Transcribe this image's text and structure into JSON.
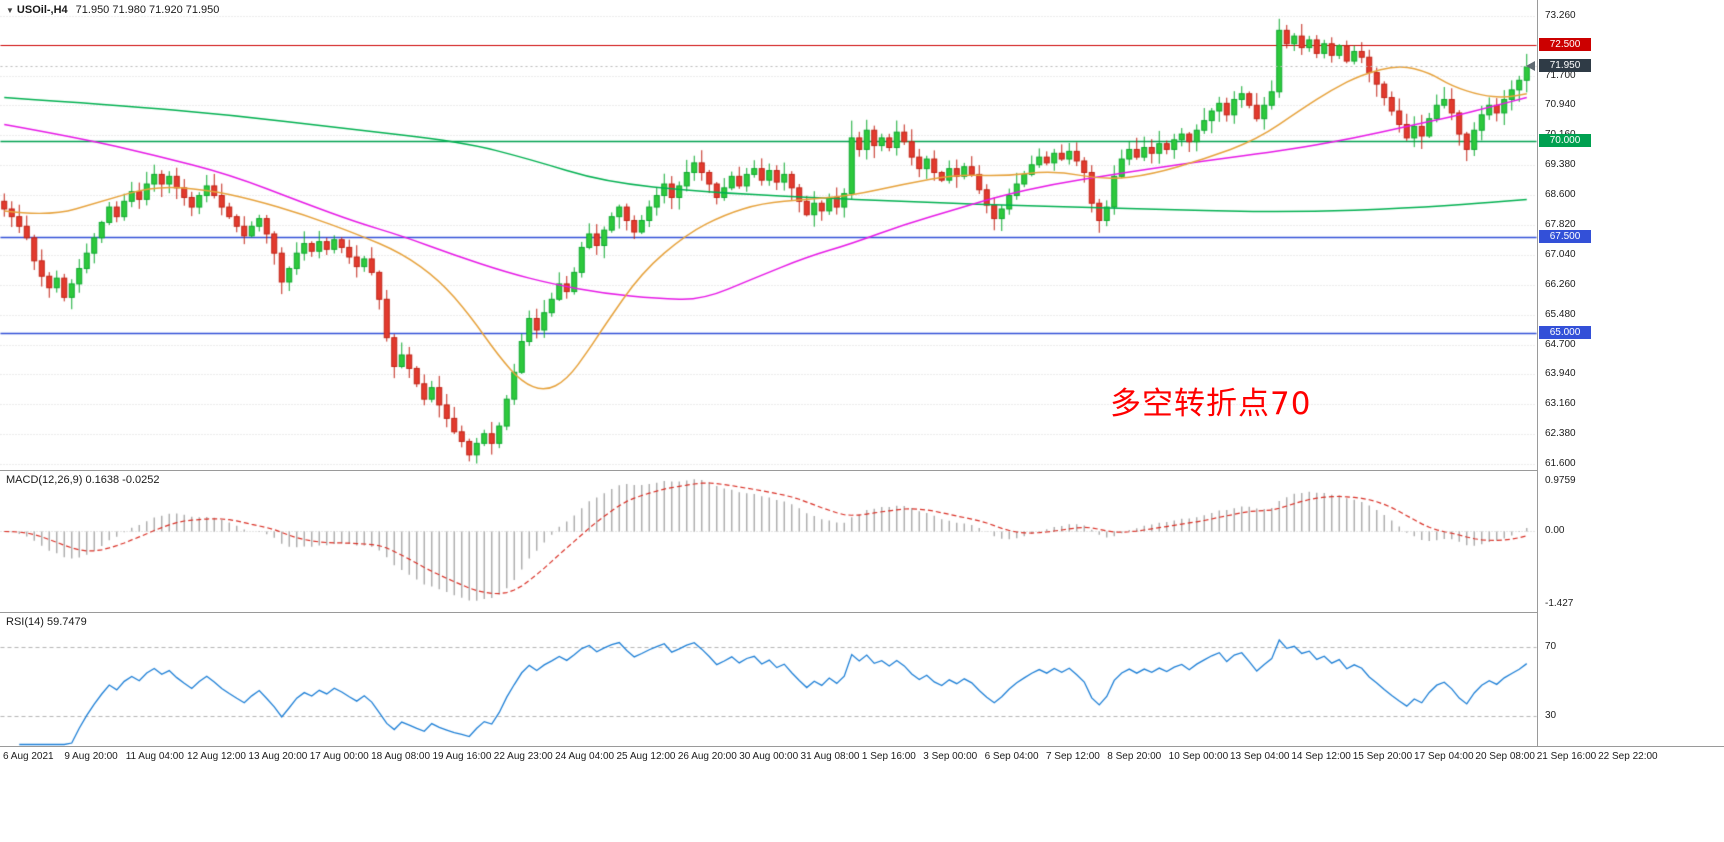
{
  "header": {
    "marker": "▼",
    "symbol_period": "USOil-,H4",
    "ohlc": "71.950 71.980 71.920 71.950"
  },
  "annotation": {
    "text": "多空转折点70",
    "color": "#ff0000"
  },
  "panes": {
    "macd": {
      "label": "MACD(12,26,9) 0.1638 -0.0252",
      "axis": [
        {
          "v": 0.9759,
          "t": "0.9759"
        },
        {
          "v": 0.0,
          "t": "0.00"
        },
        {
          "v": -1.427,
          "t": "-1.427"
        }
      ]
    },
    "rsi": {
      "label": "RSI(14) 59.7479",
      "axis": [
        {
          "v": 70,
          "t": "70"
        },
        {
          "v": 30,
          "t": "30"
        }
      ]
    }
  },
  "price_axis": {
    "ticks": [
      {
        "price": 73.26,
        "label": "73.260"
      },
      {
        "price": 71.7,
        "label": "71.700"
      },
      {
        "price": 70.94,
        "label": "70.940"
      },
      {
        "price": 70.16,
        "label": "70.160"
      },
      {
        "price": 69.38,
        "label": "69.380"
      },
      {
        "price": 68.6,
        "label": "68.600"
      },
      {
        "price": 67.82,
        "label": "67.820"
      },
      {
        "price": 67.04,
        "label": "67.040"
      },
      {
        "price": 66.26,
        "label": "66.260"
      },
      {
        "price": 65.48,
        "label": "65.480"
      },
      {
        "price": 64.7,
        "label": "64.700"
      },
      {
        "price": 63.94,
        "label": "63.940"
      },
      {
        "price": 63.16,
        "label": "63.160"
      },
      {
        "price": 62.38,
        "label": "62.380"
      },
      {
        "price": 61.6,
        "label": "61.600"
      }
    ]
  },
  "time_axis": {
    "labels": [
      "6 Aug 2021",
      "9 Aug 20:00",
      "11 Aug 04:00",
      "12 Aug 12:00",
      "13 Aug 20:00",
      "17 Aug 00:00",
      "18 Aug 08:00",
      "19 Aug 16:00",
      "22 Aug 23:00",
      "24 Aug 04:00",
      "25 Aug 12:00",
      "26 Aug 20:00",
      "30 Aug 00:00",
      "31 Aug 08:00",
      "1 Sep 16:00",
      "3 Sep 00:00",
      "6 Sep 04:00",
      "7 Sep 12:00",
      "8 Sep 20:00",
      "10 Sep 00:00",
      "13 Sep 04:00",
      "14 Sep 12:00",
      "15 Sep 20:00",
      "17 Sep 04:00",
      "20 Sep 08:00",
      "21 Sep 16:00",
      "22 Sep 22:00"
    ]
  },
  "chart_data": {
    "type": "candlestick",
    "symbol": "USOil",
    "timeframe": "H4",
    "title": "USOil-,H4 71.950 71.980 71.920 71.950",
    "price_range": [
      61.44,
      73.47
    ],
    "open_rule": "each candle opens at the previous close",
    "first_open": 68.45,
    "closes": [
      68.25,
      68.05,
      67.8,
      67.5,
      66.9,
      66.5,
      66.2,
      66.45,
      65.95,
      66.3,
      66.7,
      67.1,
      67.5,
      67.9,
      68.3,
      68.05,
      68.45,
      68.7,
      68.5,
      68.9,
      69.15,
      68.9,
      69.1,
      68.8,
      68.55,
      68.3,
      68.6,
      68.85,
      68.6,
      68.3,
      68.05,
      67.8,
      67.55,
      67.8,
      68.0,
      67.6,
      67.1,
      66.35,
      66.7,
      67.1,
      67.35,
      67.15,
      67.4,
      67.2,
      67.45,
      67.25,
      67.0,
      66.75,
      66.95,
      66.6,
      65.9,
      64.9,
      64.15,
      64.45,
      64.1,
      63.7,
      63.3,
      63.6,
      63.15,
      62.8,
      62.45,
      62.2,
      61.85,
      62.15,
      62.4,
      62.15,
      62.6,
      63.3,
      64.0,
      64.8,
      65.4,
      65.1,
      65.55,
      65.9,
      66.3,
      66.1,
      66.6,
      67.25,
      67.6,
      67.3,
      67.7,
      68.05,
      68.3,
      67.95,
      67.65,
      67.95,
      68.3,
      68.6,
      68.9,
      68.55,
      68.85,
      69.2,
      69.45,
      69.2,
      68.9,
      68.55,
      68.8,
      69.1,
      68.85,
      69.15,
      69.3,
      69.0,
      69.25,
      68.95,
      69.15,
      68.8,
      68.45,
      68.1,
      68.4,
      68.2,
      68.55,
      68.3,
      68.65,
      70.1,
      69.8,
      70.3,
      69.9,
      70.1,
      69.85,
      70.25,
      70.0,
      69.6,
      69.3,
      69.55,
      69.2,
      69.0,
      69.3,
      69.1,
      69.35,
      69.15,
      68.75,
      68.35,
      68.0,
      68.25,
      68.6,
      68.9,
      69.15,
      69.4,
      69.6,
      69.45,
      69.7,
      69.55,
      69.75,
      69.5,
      69.2,
      68.4,
      67.95,
      68.3,
      69.1,
      69.55,
      69.8,
      69.6,
      69.85,
      69.7,
      69.95,
      69.8,
      70.05,
      70.2,
      70.0,
      70.3,
      70.55,
      70.8,
      71.0,
      70.7,
      71.1,
      71.25,
      70.95,
      70.6,
      70.95,
      71.3,
      72.9,
      72.55,
      72.75,
      72.45,
      72.65,
      72.3,
      72.55,
      72.25,
      72.5,
      72.1,
      72.35,
      72.2,
      71.8,
      71.5,
      71.15,
      70.8,
      70.45,
      70.1,
      70.4,
      70.15,
      70.6,
      70.95,
      71.1,
      70.75,
      70.2,
      69.8,
      70.3,
      70.7,
      70.95,
      70.75,
      71.1,
      71.35,
      71.6,
      71.95
    ],
    "wick_overrides": {
      "62": {
        "low": 61.68
      },
      "113": {
        "high": 70.55
      },
      "170": {
        "high": 73.2
      }
    },
    "levels": [
      {
        "price": 72.5,
        "label": "72.500",
        "color": "#cc0000",
        "width": 1.2
      },
      {
        "price": 70.0,
        "label": "70.000",
        "color": "#00a050",
        "width": 1.4
      },
      {
        "price": 67.5,
        "label": "67.500",
        "color": "#3350d8",
        "width": 1.7
      },
      {
        "price": 65.0,
        "label": "65.000",
        "color": "#3350d8",
        "width": 1.7
      }
    ],
    "current_price": {
      "price": 71.95,
      "label": "71.950",
      "badge_color": "#2f3b46"
    },
    "moving_averages": [
      {
        "name": "ma-slow-green",
        "color": "#00b050",
        "points": [
          [
            0,
            71.15
          ],
          [
            15,
            70.95
          ],
          [
            30,
            70.7
          ],
          [
            45,
            70.35
          ],
          [
            61,
            70.0
          ],
          [
            70,
            69.55
          ],
          [
            80,
            68.95
          ],
          [
            93,
            68.7
          ],
          [
            107,
            68.55
          ],
          [
            120,
            68.45
          ],
          [
            133,
            68.35
          ],
          [
            147,
            68.28
          ],
          [
            160,
            68.2
          ],
          [
            173,
            68.17
          ],
          [
            187,
            68.27
          ],
          [
            197,
            68.4
          ],
          [
            203,
            68.5
          ]
        ]
      },
      {
        "name": "ma-mid-magenta",
        "color": "#e619e6",
        "points": [
          [
            0,
            70.45
          ],
          [
            10,
            70.1
          ],
          [
            20,
            69.65
          ],
          [
            30,
            69.15
          ],
          [
            40,
            68.4
          ],
          [
            47,
            67.9
          ],
          [
            53,
            67.55
          ],
          [
            60,
            67.05
          ],
          [
            67,
            66.6
          ],
          [
            73,
            66.3
          ],
          [
            80,
            66.05
          ],
          [
            87,
            65.92
          ],
          [
            93,
            65.88
          ],
          [
            100,
            66.45
          ],
          [
            107,
            67.0
          ],
          [
            113,
            67.35
          ],
          [
            120,
            67.85
          ],
          [
            127,
            68.25
          ],
          [
            133,
            68.6
          ],
          [
            140,
            68.9
          ],
          [
            147,
            69.12
          ],
          [
            153,
            69.3
          ],
          [
            160,
            69.5
          ],
          [
            167,
            69.68
          ],
          [
            173,
            69.85
          ],
          [
            180,
            70.1
          ],
          [
            187,
            70.4
          ],
          [
            193,
            70.65
          ],
          [
            198,
            70.9
          ],
          [
            203,
            71.15
          ]
        ]
      },
      {
        "name": "ma-fast-orange",
        "color": "#e6a23c",
        "points": [
          [
            0,
            68.2
          ],
          [
            6,
            68.05
          ],
          [
            13,
            68.45
          ],
          [
            20,
            68.85
          ],
          [
            27,
            68.75
          ],
          [
            33,
            68.5
          ],
          [
            40,
            68.1
          ],
          [
            47,
            67.6
          ],
          [
            53,
            67.1
          ],
          [
            58,
            66.4
          ],
          [
            62,
            65.5
          ],
          [
            66,
            64.4
          ],
          [
            69,
            63.75
          ],
          [
            72,
            63.5
          ],
          [
            75,
            63.8
          ],
          [
            78,
            64.6
          ],
          [
            80,
            65.2
          ],
          [
            85,
            66.6
          ],
          [
            91,
            67.6
          ],
          [
            96,
            68.1
          ],
          [
            101,
            68.4
          ],
          [
            107,
            68.5
          ],
          [
            113,
            68.6
          ],
          [
            120,
            68.9
          ],
          [
            127,
            69.15
          ],
          [
            133,
            69.1
          ],
          [
            140,
            69.25
          ],
          [
            147,
            69.0
          ],
          [
            153,
            69.15
          ],
          [
            160,
            69.55
          ],
          [
            167,
            70.05
          ],
          [
            173,
            70.85
          ],
          [
            177,
            71.35
          ],
          [
            181,
            71.75
          ],
          [
            186,
            72.0
          ],
          [
            190,
            71.8
          ],
          [
            193,
            71.45
          ],
          [
            197,
            71.2
          ],
          [
            200,
            71.15
          ],
          [
            203,
            71.25
          ]
        ]
      }
    ],
    "macd": {
      "params": "12,26,9",
      "main_value": "0.1638",
      "signal_value": "-0.0252",
      "range": [
        -1.427,
        0.9759
      ]
    },
    "rsi": {
      "period": 14,
      "value": "59.7479",
      "levels": [
        70,
        30
      ]
    },
    "colors": {
      "bull_fill": "#2ec93c",
      "bull_stroke": "#0faa30",
      "bear_fill": "#e23a2e",
      "bear_stroke": "#c12417",
      "histogram": "#ababab",
      "signal_line": "#d93026",
      "rsi_line": "#1d7fd6",
      "grid": "#d6d6d6"
    }
  }
}
